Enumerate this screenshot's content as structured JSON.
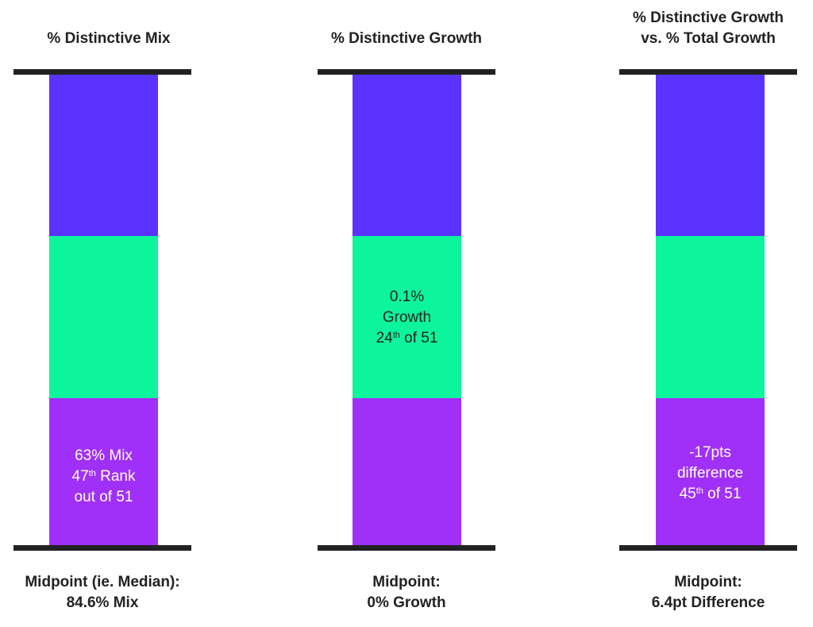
{
  "colors": {
    "top_segment": "#5B33FF",
    "middle_segment": "#0DF59C",
    "bottom_segment": "#A030F7",
    "cap": "#222222",
    "text_dark": "#222222",
    "text_light": "#FFFFFF"
  },
  "chart_data": [
    {
      "type": "bar",
      "title": "% Distinctive Mix",
      "segments": [
        "top",
        "middle",
        "bottom"
      ],
      "highlight_segment": "bottom",
      "label_lines": [
        "63% Mix",
        "47th Rank",
        "out of 51"
      ],
      "value": "63% Mix",
      "rank": "47th",
      "rank_out_of": "out of 51",
      "midpoint_lines": [
        "Midpoint (ie. Median):",
        "84.6% Mix"
      ]
    },
    {
      "type": "bar",
      "title": "% Distinctive Growth",
      "segments": [
        "top",
        "middle",
        "bottom"
      ],
      "highlight_segment": "middle",
      "label_lines": [
        "0.1%",
        "Growth",
        "24th of 51"
      ],
      "value": "0.1% Growth",
      "rank": "24th",
      "rank_out_of": "of 51",
      "midpoint_lines": [
        "Midpoint:",
        "0% Growth"
      ]
    },
    {
      "type": "bar",
      "title_lines": [
        "% Distinctive Growth",
        "vs. % Total Growth"
      ],
      "segments": [
        "top",
        "middle",
        "bottom"
      ],
      "highlight_segment": "bottom",
      "label_lines": [
        "-17pts",
        "difference",
        "45th of 51"
      ],
      "value": "-17pts difference",
      "rank": "45th",
      "rank_out_of": "of 51",
      "midpoint_lines": [
        "Midpoint:",
        "6.4pt Difference"
      ]
    }
  ],
  "text": {
    "mix": {
      "title": "% Distinctive Mix",
      "l1": "63% Mix",
      "rank_num": "47",
      "rank_sup": "th",
      "rank_rest": " Rank",
      "l3": "out of 51",
      "mid1": "Midpoint (ie. Median):",
      "mid2": "84.6% Mix"
    },
    "growth": {
      "title": "% Distinctive Growth",
      "l1": "0.1%",
      "l2": "Growth",
      "rank_num": "24",
      "rank_sup": "th",
      "rank_rest": " of 51",
      "mid1": "Midpoint:",
      "mid2": "0% Growth"
    },
    "diff": {
      "title1": "% Distinctive Growth",
      "title2": "vs. % Total Growth",
      "l1": "-17pts",
      "l2": "difference",
      "rank_num": "45",
      "rank_sup": "th",
      "rank_rest": " of 51",
      "mid1": "Midpoint:",
      "mid2": "6.4pt Difference"
    }
  }
}
